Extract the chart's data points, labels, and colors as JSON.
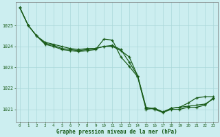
{
  "xlabel": "Graphe pression niveau de la mer (hPa)",
  "background_color": "#cceef0",
  "grid_color": "#aad8da",
  "line_color": "#1a5c1a",
  "hours": [
    0,
    1,
    2,
    3,
    4,
    5,
    6,
    7,
    8,
    9,
    10,
    11,
    12,
    13,
    14,
    15,
    16,
    17,
    18,
    19,
    20,
    21,
    22,
    23
  ],
  "line1": [
    1025.85,
    1025.0,
    1024.5,
    1024.1,
    1024.0,
    1023.85,
    1023.8,
    1023.75,
    1023.8,
    1023.85,
    1024.35,
    1024.3,
    1023.5,
    1023.05,
    1022.55,
    1021.0,
    1021.05,
    1020.85,
    1021.05,
    1021.1,
    1021.3,
    1021.55,
    1021.6,
    1021.6
  ],
  "line2": [
    1025.85,
    1025.0,
    1024.5,
    1024.15,
    1024.05,
    1023.9,
    1023.85,
    1023.8,
    1023.85,
    1023.9,
    1024.0,
    1024.05,
    1023.85,
    1023.25,
    1022.6,
    1021.05,
    1021.05,
    1020.88,
    1021.05,
    1021.1,
    1021.15,
    1021.2,
    1021.25,
    1021.5
  ],
  "line3": [
    1025.85,
    1025.0,
    1024.5,
    1024.2,
    1024.1,
    1024.0,
    1023.9,
    1023.85,
    1023.9,
    1023.9,
    1024.0,
    1024.0,
    1023.8,
    1023.5,
    1022.6,
    1021.1,
    1021.0,
    1020.85,
    1021.0,
    1021.0,
    1021.1,
    1021.1,
    1021.2,
    1021.55
  ],
  "ylim_min": 1020.4,
  "ylim_max": 1026.1,
  "yticks": [
    1021,
    1022,
    1023,
    1024,
    1025
  ],
  "xticks": [
    0,
    1,
    2,
    3,
    4,
    5,
    6,
    7,
    8,
    9,
    10,
    11,
    12,
    13,
    14,
    15,
    16,
    17,
    18,
    19,
    20,
    21,
    22,
    23
  ]
}
